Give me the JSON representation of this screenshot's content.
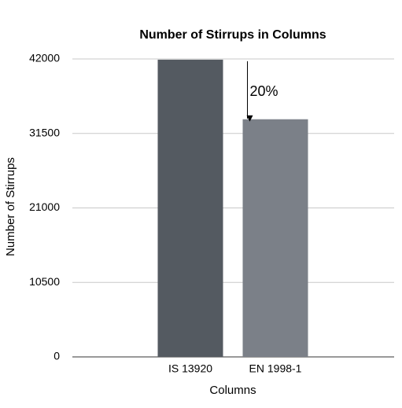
{
  "chart_data": {
    "type": "bar",
    "title": "Number of Stirrups in Columns",
    "x_label": "Columns",
    "y_label": "Number of Stirrups",
    "categories": [
      "IS 13920",
      "EN 1998-1"
    ],
    "values": [
      41900,
      33500
    ],
    "colors": [
      "#545a61",
      "#7b8088"
    ],
    "ylim": [
      0,
      42000
    ],
    "yticks": [
      0,
      10500,
      21000,
      31500,
      42000
    ],
    "grid": true,
    "annotation": "20%"
  }
}
